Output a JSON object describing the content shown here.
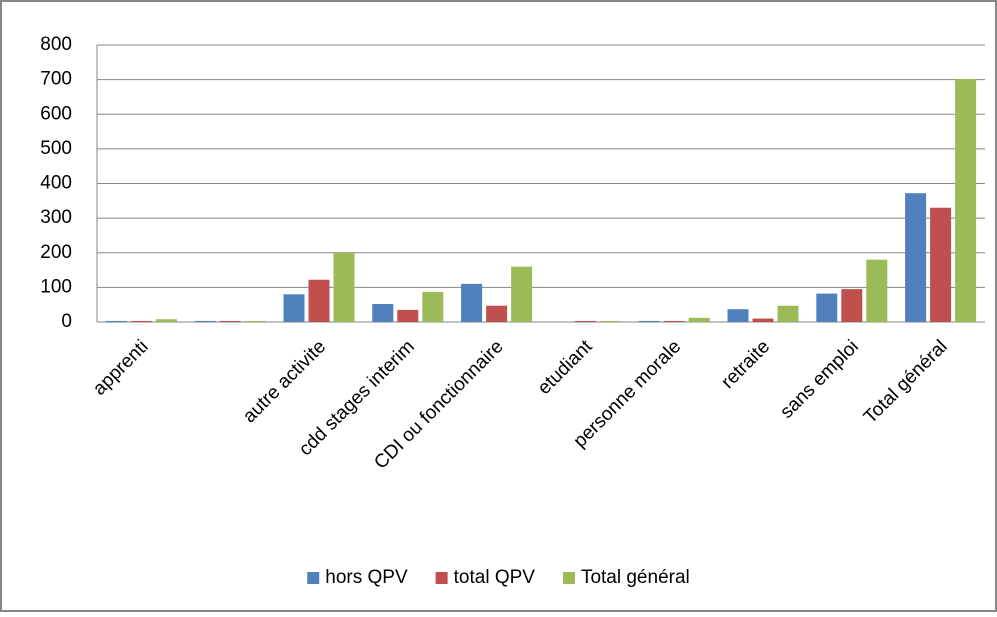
{
  "chart_data": {
    "type": "bar",
    "categories": [
      "apprenti",
      null,
      "autre activite",
      "cdd stages interim",
      "CDI ou fonctionnaire",
      "etudiant",
      "personne morale",
      "retraite",
      "sans emploi",
      "Total général"
    ],
    "series": [
      {
        "name": "hors QPV",
        "color": "#4f81bd",
        "values": [
          3,
          3,
          80,
          52,
          110,
          0,
          3,
          37,
          82,
          372
        ]
      },
      {
        "name": "total QPV",
        "color": "#c0504d",
        "values": [
          3,
          3,
          122,
          35,
          47,
          3,
          3,
          10,
          95,
          330
        ]
      },
      {
        "name": "Total général",
        "color": "#9bbb59",
        "values": [
          8,
          3,
          200,
          87,
          160,
          3,
          12,
          47,
          180,
          702
        ]
      }
    ],
    "ylim": [
      0,
      800
    ],
    "yticks": [
      0,
      100,
      200,
      300,
      400,
      500,
      600,
      700,
      800
    ],
    "grid": true,
    "legend": "bottom"
  }
}
